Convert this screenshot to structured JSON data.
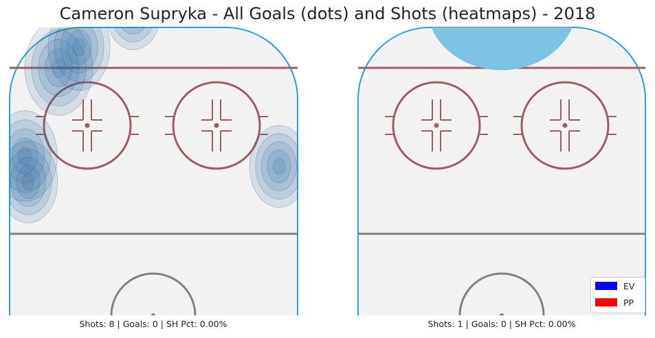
{
  "title": "Cameron Supryka - All Goals (dots) and Shots (heatmaps) - 2018",
  "colors": {
    "ice": "#f2f2f2",
    "boards": "#2a9fd6",
    "red_line": "#a05a60",
    "blue_line": "#808080",
    "shot_heat": "#2e6da4",
    "ev": "#0000ff",
    "pp": "#ff0000"
  },
  "chart_data": [
    {
      "type": "heatmap",
      "panel": "left",
      "caption": "Shots: 8 | Goals: 0 | SH Pct: 0.00%",
      "shots": 8,
      "goals": 0,
      "sh_pct": "0.00%",
      "density_peaks": [
        {
          "x": -28,
          "y": 64,
          "weight": 1.0
        },
        {
          "x": -22,
          "y": 72,
          "weight": 0.8
        },
        {
          "x": -38,
          "y": 30,
          "weight": 0.9
        },
        {
          "x": -37,
          "y": 20,
          "weight": 0.7
        },
        {
          "x": 37,
          "y": 26,
          "weight": 0.7
        },
        {
          "x": -6,
          "y": 86,
          "weight": 0.6
        }
      ]
    },
    {
      "type": "heatmap",
      "panel": "right",
      "caption": "Shots: 1 | Goals: 0 | SH Pct: 0.00%",
      "shots": 1,
      "goals": 0,
      "sh_pct": "0.00%",
      "density_peaks": [
        {
          "x": 0,
          "y": 88,
          "weight": 1.0
        }
      ]
    }
  ],
  "legend": [
    {
      "label": "EV",
      "color": "#0000ff"
    },
    {
      "label": "PP",
      "color": "#ff0000"
    }
  ]
}
